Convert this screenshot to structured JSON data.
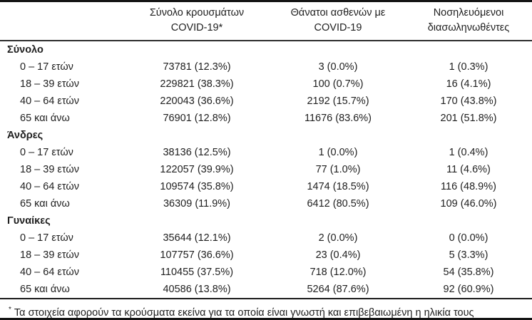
{
  "page": {
    "background_color": "#ffffff",
    "text_color": "#212121",
    "rule_color": "#141414"
  },
  "table": {
    "headers": [
      {
        "line1": "Σύνολο κρουσμάτων",
        "line2": "COVID-19*"
      },
      {
        "line1": "Θάνατοι ασθενών με",
        "line2": "COVID-19"
      },
      {
        "line1": "Νοσηλευόμενοι",
        "line2": "διασωληνωθέντες"
      }
    ],
    "sections": [
      {
        "title": "Σύνολο",
        "rows": [
          {
            "label": "0 – 17 ετών",
            "cases": "73781 (12.3%)",
            "deaths": "3 (0.0%)",
            "intubated": "1 (0.3%)"
          },
          {
            "label": "18 – 39 ετών",
            "cases": "229821 (38.3%)",
            "deaths": "100 (0.7%)",
            "intubated": "16 (4.1%)"
          },
          {
            "label": "40 – 64 ετών",
            "cases": "220043 (36.6%)",
            "deaths": "2192 (15.7%)",
            "intubated": "170 (43.8%)"
          },
          {
            "label": "65 και άνω",
            "cases": "76901 (12.8%)",
            "deaths": "11676 (83.6%)",
            "intubated": "201 (51.8%)"
          }
        ]
      },
      {
        "title": "Άνδρες",
        "rows": [
          {
            "label": "0 – 17 ετών",
            "cases": "38136 (12.5%)",
            "deaths": "1 (0.0%)",
            "intubated": "1 (0.4%)"
          },
          {
            "label": "18 – 39 ετών",
            "cases": "122057 (39.9%)",
            "deaths": "77 (1.0%)",
            "intubated": "11 (4.6%)"
          },
          {
            "label": "40 – 64 ετών",
            "cases": "109574 (35.8%)",
            "deaths": "1474 (18.5%)",
            "intubated": "116 (48.9%)"
          },
          {
            "label": "65 και άνω",
            "cases": "36309 (11.9%)",
            "deaths": "6412 (80.5%)",
            "intubated": "109 (46.0%)"
          }
        ]
      },
      {
        "title": "Γυναίκες",
        "rows": [
          {
            "label": "0 – 17 ετών",
            "cases": "35644 (12.1%)",
            "deaths": "2 (0.0%)",
            "intubated": "0 (0.0%)"
          },
          {
            "label": "18 – 39 ετών",
            "cases": "107757 (36.6%)",
            "deaths": "23 (0.4%)",
            "intubated": "5 (3.3%)"
          },
          {
            "label": "40 – 64 ετών",
            "cases": "110455 (37.5%)",
            "deaths": "718 (12.0%)",
            "intubated": "54 (35.8%)"
          },
          {
            "label": "65 και άνω",
            "cases": "40586 (13.8%)",
            "deaths": "5264 (87.6%)",
            "intubated": "92 (60.9%)"
          }
        ]
      }
    ]
  },
  "footnote": {
    "marker": "*",
    "text": "Τα στοιχεία αφορούν τα κρούσματα εκείνα για τα οποία είναι γνωστή και επιβεβαιωμένη η ηλικία τους"
  }
}
